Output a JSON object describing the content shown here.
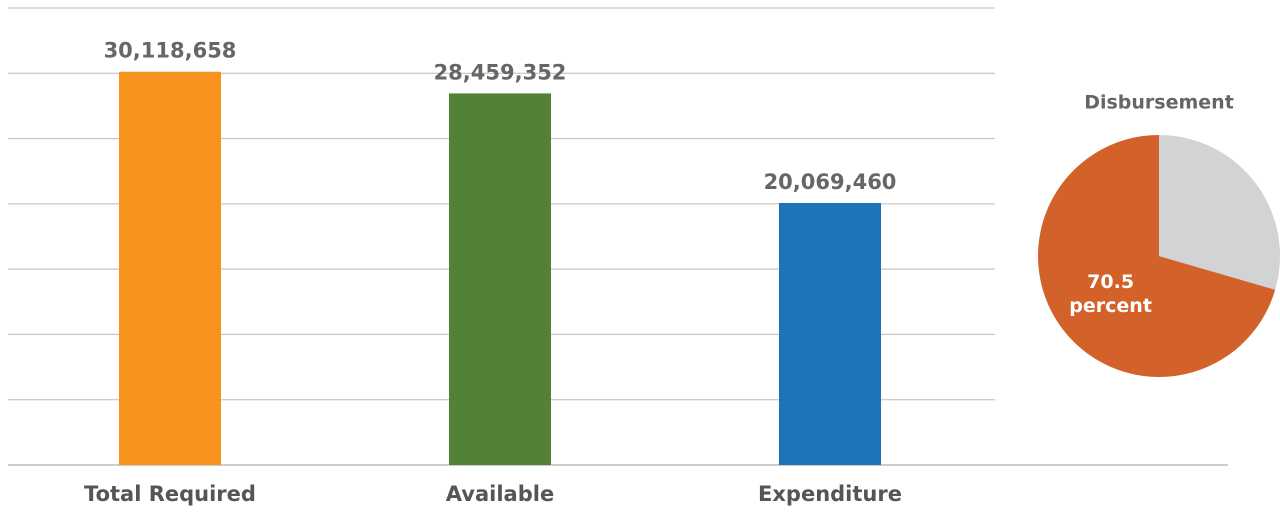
{
  "chart_data": [
    {
      "type": "bar",
      "categories": [
        "Total Required",
        "Available",
        "Expenditure"
      ],
      "values": [
        30118658,
        28459352,
        20069460
      ],
      "value_labels": [
        "30,118,658",
        "28,459,352",
        "20,069,460"
      ],
      "colors": [
        "#f7941d",
        "#538135",
        "#1f73b7"
      ],
      "ylim": [
        0,
        35000000
      ],
      "yticks": [
        0,
        5000000,
        10000000,
        15000000,
        20000000,
        25000000,
        30000000,
        35000000
      ],
      "grid": true
    },
    {
      "type": "pie",
      "title": "Disbursement",
      "values": [
        70.5,
        29.5
      ],
      "value_labels": [
        "70.5",
        null
      ],
      "label_unit": "percent",
      "colors": [
        "#d2622a",
        "#d1d3d4"
      ]
    }
  ]
}
